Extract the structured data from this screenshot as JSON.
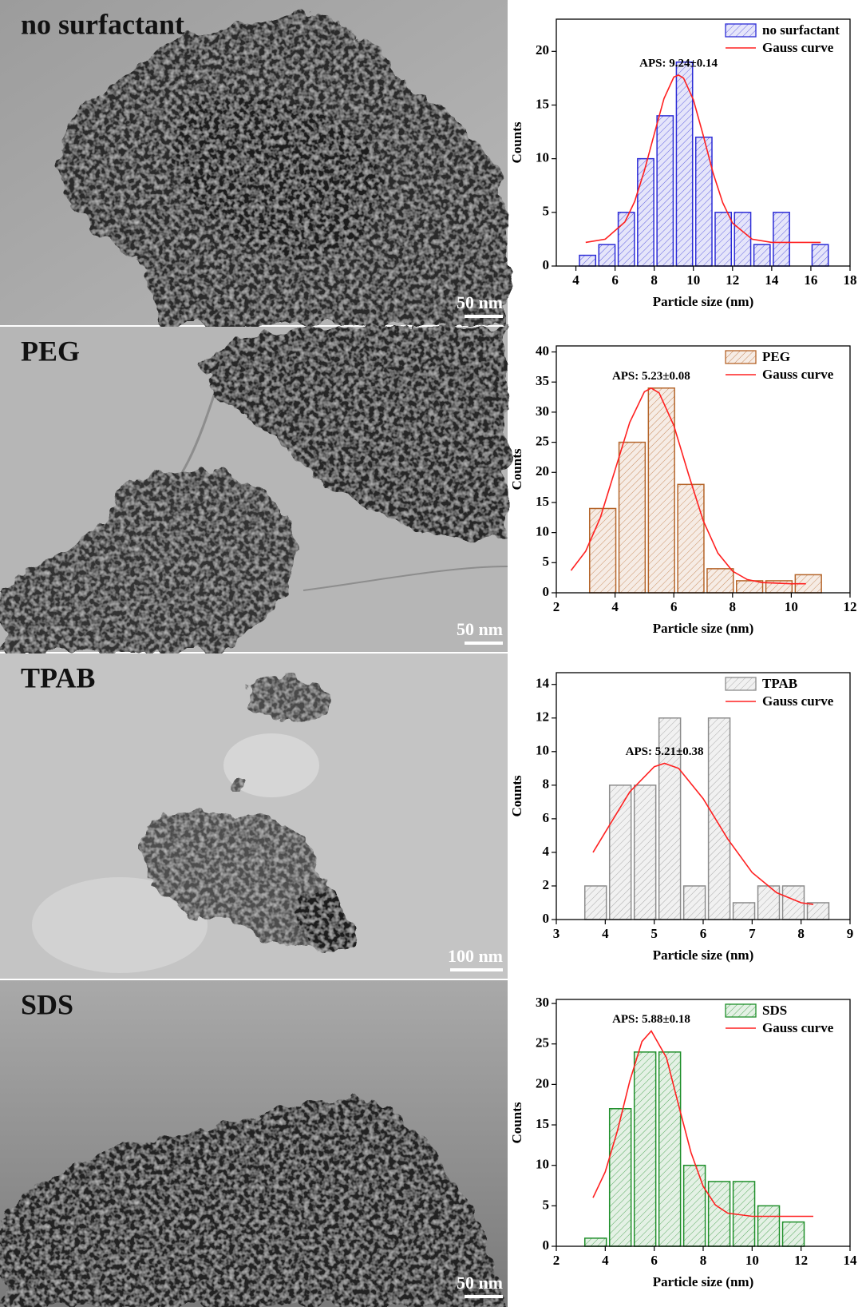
{
  "micrographs": [
    {
      "label": "no surfactant",
      "scale_bar": "50 nm"
    },
    {
      "label": "PEG",
      "scale_bar": "50 nm"
    },
    {
      "label": "TPAB",
      "scale_bar": "100 nm"
    },
    {
      "label": "SDS",
      "scale_bar": "50 nm"
    }
  ],
  "chart_data": [
    {
      "type": "histogram",
      "xlabel": "Particle size (nm)",
      "ylabel": "Counts",
      "annotation": "APS: 9.24±0.14",
      "xlim": [
        3,
        18
      ],
      "xticks": [
        4,
        6,
        8,
        10,
        12,
        14,
        16,
        18
      ],
      "ylim": [
        0,
        23
      ],
      "yticks": [
        0,
        5,
        10,
        15,
        20
      ],
      "legend": "upper right",
      "bins": [
        4.1,
        5.09,
        6.08,
        7.07,
        8.06,
        9.05,
        10.04,
        11.03,
        12.02,
        13.01,
        14.0,
        14.99,
        15.98,
        16.97
      ],
      "series": [
        {
          "name": "no surfactant",
          "color": "#2b2bd6",
          "values": [
            1,
            2,
            5,
            10,
            14,
            19,
            12,
            5,
            5,
            2,
            5,
            0,
            2
          ]
        },
        {
          "name": "Gauss curve",
          "type": "line",
          "color": "#ff2020",
          "x": [
            4.5,
            5.5,
            6.5,
            7,
            7.5,
            8,
            8.5,
            9,
            9.24,
            9.5,
            10,
            10.5,
            11,
            11.5,
            12,
            13,
            14,
            15,
            16.5
          ],
          "values": [
            2.2,
            2.5,
            4.1,
            6.0,
            8.9,
            12.3,
            15.6,
            17.6,
            17.8,
            17.5,
            15.5,
            12.2,
            8.7,
            5.9,
            4.0,
            2.5,
            2.2,
            2.2,
            2.2
          ]
        }
      ]
    },
    {
      "type": "histogram",
      "xlabel": "Particle size (nm)",
      "ylabel": "Counts",
      "annotation": "APS: 5.23±0.08",
      "xlim": [
        2,
        12
      ],
      "xticks": [
        2,
        4,
        6,
        8,
        10,
        12
      ],
      "ylim": [
        0,
        41
      ],
      "yticks": [
        0,
        5,
        10,
        15,
        20,
        25,
        30,
        35,
        40
      ],
      "legend": "upper right",
      "bins": [
        3.08,
        4.08,
        5.08,
        6.08,
        7.08,
        8.08,
        9.08,
        10.08,
        11.08
      ],
      "series": [
        {
          "name": "PEG",
          "color": "#b5652a",
          "values": [
            14,
            25,
            34,
            18,
            4,
            2,
            2,
            3
          ]
        },
        {
          "name": "Gauss curve",
          "type": "line",
          "color": "#ff2020",
          "x": [
            2.5,
            3,
            3.5,
            4,
            4.5,
            5,
            5.23,
            5.5,
            6,
            6.5,
            7,
            7.5,
            8,
            8.5,
            9,
            10,
            10.5
          ],
          "values": [
            3.7,
            6.9,
            12.5,
            20.4,
            28.3,
            33.4,
            34,
            33.2,
            27.8,
            19.7,
            12.0,
            6.6,
            3.6,
            2.2,
            1.7,
            1.5,
            1.5
          ]
        }
      ]
    },
    {
      "type": "histogram",
      "xlabel": "Particle size (nm)",
      "ylabel": "Counts",
      "annotation": "APS: 5.21±0.38",
      "xlim": [
        3,
        9
      ],
      "xticks": [
        3,
        4,
        5,
        6,
        7,
        8,
        9
      ],
      "ylim": [
        0,
        14.7
      ],
      "yticks": [
        0,
        2,
        4,
        6,
        8,
        10,
        12,
        14
      ],
      "legend": "upper right",
      "bins": [
        3.55,
        4.055,
        4.56,
        5.065,
        5.57,
        6.075,
        6.58,
        7.085,
        7.59,
        8.095,
        8.6
      ],
      "series": [
        {
          "name": "TPAB",
          "color": "#8c8c8c",
          "values": [
            2,
            8,
            8,
            12,
            2,
            12,
            1,
            2,
            2,
            1
          ]
        },
        {
          "name": "Gauss curve",
          "type": "line",
          "color": "#ff2020",
          "x": [
            3.75,
            4,
            4.5,
            5,
            5.21,
            5.5,
            6,
            6.5,
            7,
            7.5,
            8,
            8.25
          ],
          "values": [
            4.0,
            5.2,
            7.6,
            9.1,
            9.3,
            9.0,
            7.2,
            4.8,
            2.8,
            1.6,
            1.0,
            0.9
          ]
        }
      ]
    },
    {
      "type": "histogram",
      "xlabel": "Particle size (nm)",
      "ylabel": "Counts",
      "annotation": "APS: 5.88±0.18",
      "xlim": [
        2,
        14
      ],
      "xticks": [
        2,
        4,
        6,
        8,
        10,
        12,
        14
      ],
      "ylim": [
        0,
        30.5
      ],
      "yticks": [
        0,
        5,
        10,
        15,
        20,
        25,
        30
      ],
      "legend": "upper right",
      "bins": [
        3.1,
        4.11,
        5.12,
        6.13,
        7.14,
        8.15,
        9.16,
        10.17,
        11.18,
        12.19
      ],
      "series": [
        {
          "name": "SDS",
          "color": "#1f8f2a",
          "values": [
            1,
            17,
            24,
            24,
            10,
            8,
            8,
            5,
            3
          ]
        },
        {
          "name": "Gauss curve",
          "type": "line",
          "color": "#ff2020",
          "x": [
            3.5,
            4,
            4.5,
            5,
            5.5,
            5.88,
            6.5,
            7,
            7.5,
            8,
            8.5,
            9,
            10,
            11,
            12.5
          ],
          "values": [
            6.0,
            9.2,
            14.3,
            20.4,
            25.3,
            26.6,
            23.3,
            17.4,
            11.6,
            7.4,
            5.1,
            4.1,
            3.7,
            3.7,
            3.7
          ]
        }
      ]
    }
  ]
}
